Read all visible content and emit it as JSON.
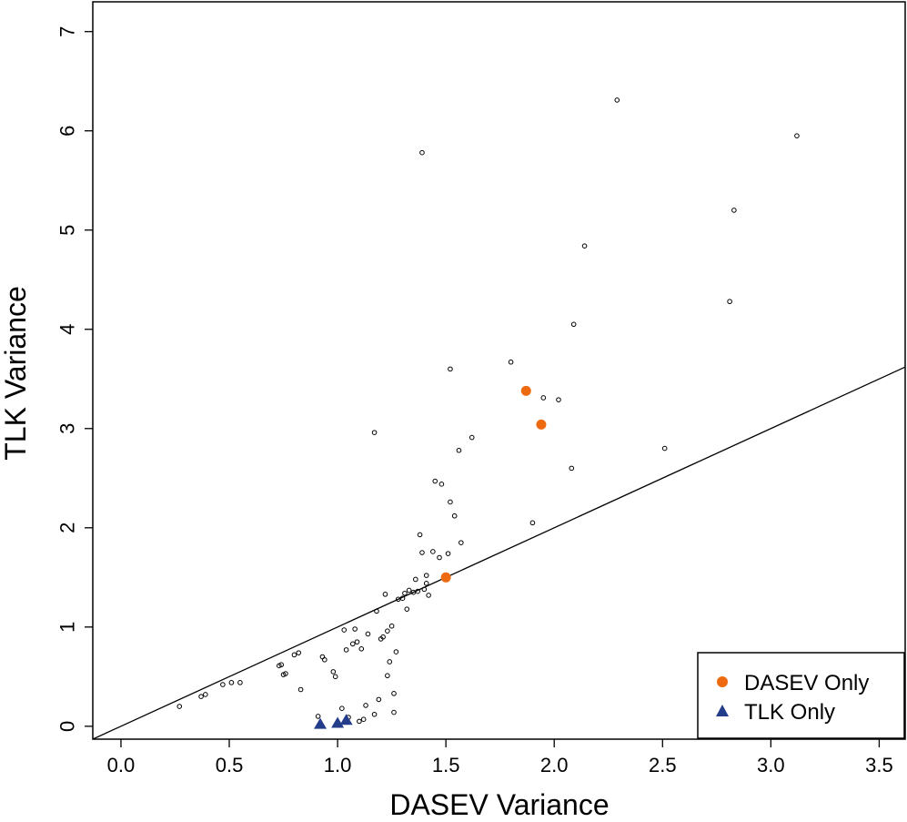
{
  "chart_data": {
    "type": "scatter",
    "title": "",
    "xlabel": "DASEV Variance",
    "ylabel": "TLK Variance",
    "xlim": [
      -0.13,
      3.62
    ],
    "ylim": [
      -0.13,
      7.3
    ],
    "x_ticks": [
      0.0,
      0.5,
      1.0,
      1.5,
      2.0,
      2.5,
      3.0,
      3.5
    ],
    "x_tick_labels": [
      "0.0",
      "0.5",
      "1.0",
      "1.5",
      "2.0",
      "2.5",
      "3.0",
      "3.5"
    ],
    "y_ticks": [
      0,
      1,
      2,
      3,
      4,
      5,
      6,
      7
    ],
    "y_tick_labels": [
      "0",
      "1",
      "2",
      "3",
      "4",
      "5",
      "6",
      "7"
    ],
    "grid": false,
    "legend_position": "bottom-right",
    "reference_line": {
      "type": "abline",
      "intercept": 0,
      "slope": 1
    },
    "series": [
      {
        "marker": "open-circle",
        "color": "#000000",
        "points": [
          [
            0.27,
            0.2
          ],
          [
            0.37,
            0.3
          ],
          [
            0.39,
            0.32
          ],
          [
            0.47,
            0.42
          ],
          [
            0.51,
            0.44
          ],
          [
            0.55,
            0.44
          ],
          [
            0.73,
            0.61
          ],
          [
            0.74,
            0.62
          ],
          [
            0.75,
            0.52
          ],
          [
            0.76,
            0.53
          ],
          [
            0.8,
            0.72
          ],
          [
            0.82,
            0.74
          ],
          [
            0.83,
            0.37
          ],
          [
            0.91,
            0.1
          ],
          [
            0.93,
            0.7
          ],
          [
            0.94,
            0.67
          ],
          [
            0.98,
            0.55
          ],
          [
            0.99,
            0.5
          ],
          [
            1.02,
            0.18
          ],
          [
            1.03,
            0.97
          ],
          [
            1.04,
            0.77
          ],
          [
            1.05,
            0.09
          ],
          [
            1.07,
            0.83
          ],
          [
            1.08,
            0.98
          ],
          [
            1.09,
            0.85
          ],
          [
            1.1,
            0.05
          ],
          [
            1.11,
            0.78
          ],
          [
            1.12,
            0.07
          ],
          [
            1.13,
            0.21
          ],
          [
            1.14,
            0.93
          ],
          [
            1.17,
            0.12
          ],
          [
            1.18,
            1.16
          ],
          [
            1.19,
            0.27
          ],
          [
            1.2,
            0.88
          ],
          [
            1.21,
            0.9
          ],
          [
            1.22,
            1.33
          ],
          [
            1.23,
            0.51
          ],
          [
            1.23,
            0.96
          ],
          [
            1.24,
            0.65
          ],
          [
            1.25,
            1.01
          ],
          [
            1.26,
            0.14
          ],
          [
            1.26,
            0.33
          ],
          [
            1.27,
            0.75
          ],
          [
            1.28,
            1.28
          ],
          [
            1.3,
            1.29
          ],
          [
            1.31,
            1.34
          ],
          [
            1.32,
            1.18
          ],
          [
            1.33,
            1.37
          ],
          [
            1.35,
            1.35
          ],
          [
            1.36,
            1.48
          ],
          [
            1.37,
            1.36
          ],
          [
            1.38,
            1.93
          ],
          [
            1.39,
            1.75
          ],
          [
            1.4,
            1.38
          ],
          [
            1.41,
            1.52
          ],
          [
            1.41,
            1.44
          ],
          [
            1.42,
            1.32
          ],
          [
            1.44,
            1.76
          ],
          [
            1.45,
            2.47
          ],
          [
            1.47,
            1.7
          ],
          [
            1.48,
            2.44
          ],
          [
            1.5,
            1.52
          ],
          [
            1.51,
            1.74
          ],
          [
            1.52,
            2.26
          ],
          [
            1.54,
            2.12
          ],
          [
            1.56,
            2.78
          ],
          [
            1.57,
            1.85
          ],
          [
            1.62,
            2.91
          ],
          [
            1.17,
            2.96
          ],
          [
            1.52,
            3.6
          ],
          [
            1.8,
            3.67
          ],
          [
            1.9,
            2.05
          ],
          [
            1.95,
            3.31
          ],
          [
            2.02,
            3.29
          ],
          [
            2.08,
            2.6
          ],
          [
            2.09,
            4.05
          ],
          [
            2.14,
            4.84
          ],
          [
            2.29,
            6.31
          ],
          [
            1.39,
            5.78
          ],
          [
            2.51,
            2.8
          ],
          [
            2.81,
            4.28
          ],
          [
            2.83,
            5.2
          ],
          [
            3.12,
            5.95
          ]
        ]
      },
      {
        "name": "DASEV Only",
        "marker": "filled-circle",
        "color": "#EE6A10",
        "points": [
          [
            1.5,
            1.5
          ],
          [
            1.87,
            3.38
          ],
          [
            1.94,
            3.04
          ]
        ]
      },
      {
        "name": "TLK Only",
        "marker": "filled-triangle",
        "color": "#243D8A",
        "points": [
          [
            0.92,
            0.02
          ],
          [
            1.0,
            0.03
          ],
          [
            1.04,
            0.06
          ]
        ]
      }
    ]
  }
}
